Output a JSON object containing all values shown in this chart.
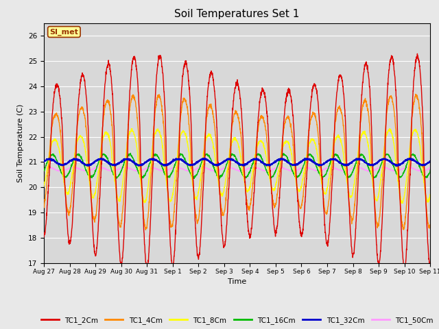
{
  "title": "Soil Temperatures Set 1",
  "xlabel": "Time",
  "ylabel": "Soil Temperature (C)",
  "ylim": [
    17.0,
    26.5
  ],
  "yticks": [
    17.0,
    18.0,
    19.0,
    20.0,
    21.0,
    22.0,
    23.0,
    24.0,
    25.0,
    26.0
  ],
  "annotation_text": "SI_met",
  "annotation_bg": "#ffff99",
  "annotation_border": "#993300",
  "annotation_text_color": "#993300",
  "fig_bg_color": "#e8e8e8",
  "plot_bg": "#d8d8d8",
  "line_colors": {
    "TC1_2Cm": "#dd0000",
    "TC1_4Cm": "#ff8800",
    "TC1_8Cm": "#ffff00",
    "TC1_16Cm": "#00bb00",
    "TC1_32Cm": "#0000cc",
    "TC1_50Cm": "#ff99ff"
  },
  "xtick_labels": [
    "Aug 27",
    "Aug 28",
    "Aug 29",
    "Aug 30",
    "Aug 31",
    "Sep 1",
    "Sep 2",
    "Sep 3",
    "Sep 4",
    "Sep 5",
    "Sep 6",
    "Sep 7",
    "Sep 8",
    "Sep 9",
    "Sep 10",
    "Sep 11"
  ],
  "num_days": 15,
  "points_per_day": 144
}
